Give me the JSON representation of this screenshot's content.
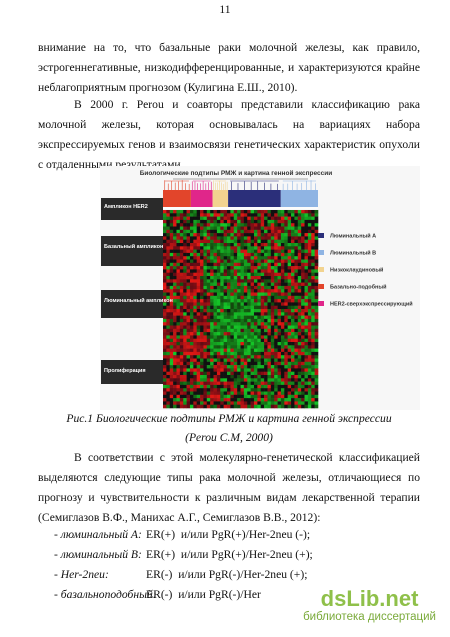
{
  "page_number": "11",
  "paragraphs": [
    "внимание на то, что базальные раки молочной железы, как правило, эстрогеннегативные, низкодифференцированные, и характеризуются крайне неблагоприятным прогнозом (Кулигина Е.Ш., 2010).",
    "В 2000 г. Perou и соавторы представили классификацию рака молочной железы, которая основывалась на вариациях набора экспрессируемых генов и взаимосвязи генетических характеристик опухоли с отдаленными результатами."
  ],
  "figure": {
    "title": "Биологические подтипы РМЖ и картина генной экспрессии",
    "row_labels": [
      "Ампликон HER2",
      "Базальный ампликон",
      "Люминальный ампликон",
      "Пролиферация"
    ],
    "legend": [
      {
        "name": "Люминальный A",
        "color": "#2b2f7a"
      },
      {
        "name": "Люминальный B",
        "color": "#8fb4e3"
      },
      {
        "name": "Низкоклаудиновый",
        "color": "#f2d38f"
      },
      {
        "name": "Базально-подобный",
        "color": "#e2452b"
      },
      {
        "name": "HER2-сверхэкспрессирующий",
        "color": "#e0268a"
      }
    ],
    "caption": "Рис.1 Биологические подтипы РМЖ и картина генной экспрессии",
    "source": "(Perou C.M, 2000)"
  },
  "paragraph_after": "В соответствии с этой молекулярно-генетической классификацией выделяются следующие типы рака молочной железы, отличающиеся по прогнозу и чувствительности к различным видам лекарственной терапии (Семиглазов В.Ф., Манихас А.Г., Семиглазов В.В., 2012):",
  "list": [
    {
      "subtype": "- люминальный A:",
      "markers": "ER(+)  и/или PgR(+)/Her-2neu (-);"
    },
    {
      "subtype": "- люминальный B:",
      "markers": "ER(+)  и/или PgR(+)/Her-2neu (+);"
    },
    {
      "subtype": "- Her-2neu:",
      "markers": "ER(-)  и/или PgR(-)/Her-2neu (+);"
    },
    {
      "subtype": "- базальноподобный:",
      "markers": "ER(-)  и/или PgR(-)/Her"
    }
  ],
  "watermark": {
    "brand": "dsLib.net",
    "tagline": "библиотека диссертаций"
  }
}
